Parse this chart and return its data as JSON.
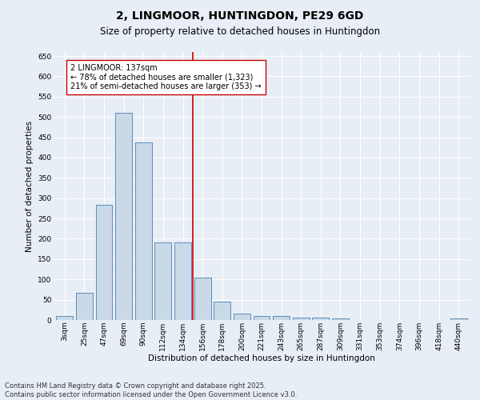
{
  "title": "2, LINGMOOR, HUNTINGDON, PE29 6GD",
  "subtitle": "Size of property relative to detached houses in Huntingdon",
  "xlabel": "Distribution of detached houses by size in Huntingdon",
  "ylabel": "Number of detached properties",
  "categories": [
    "3sqm",
    "25sqm",
    "47sqm",
    "69sqm",
    "90sqm",
    "112sqm",
    "134sqm",
    "156sqm",
    "178sqm",
    "200sqm",
    "221sqm",
    "243sqm",
    "265sqm",
    "287sqm",
    "309sqm",
    "331sqm",
    "353sqm",
    "374sqm",
    "396sqm",
    "418sqm",
    "440sqm"
  ],
  "values": [
    10,
    67,
    283,
    510,
    437,
    192,
    191,
    105,
    46,
    15,
    10,
    10,
    5,
    5,
    3,
    0,
    0,
    0,
    0,
    0,
    3
  ],
  "bar_color": "#c9d9e8",
  "bar_edge_color": "#5b8db8",
  "vline_color": "#cc0000",
  "vline_index": 6.5,
  "annotation_text": "2 LINGMOOR: 137sqm\n← 78% of detached houses are smaller (1,323)\n21% of semi-detached houses are larger (353) →",
  "annotation_box_color": "#ffffff",
  "annotation_box_edge_color": "#cc0000",
  "ylim": [
    0,
    660
  ],
  "yticks": [
    0,
    50,
    100,
    150,
    200,
    250,
    300,
    350,
    400,
    450,
    500,
    550,
    600,
    650
  ],
  "footer_line1": "Contains HM Land Registry data © Crown copyright and database right 2025.",
  "footer_line2": "Contains public sector information licensed under the Open Government Licence v3.0.",
  "bg_color": "#e8eef5",
  "plot_bg_color": "#e8eef5",
  "grid_color": "#ffffff",
  "title_fontsize": 10,
  "subtitle_fontsize": 8.5,
  "axis_label_fontsize": 7.5,
  "tick_fontsize": 6.5,
  "annotation_fontsize": 7,
  "footer_fontsize": 6
}
